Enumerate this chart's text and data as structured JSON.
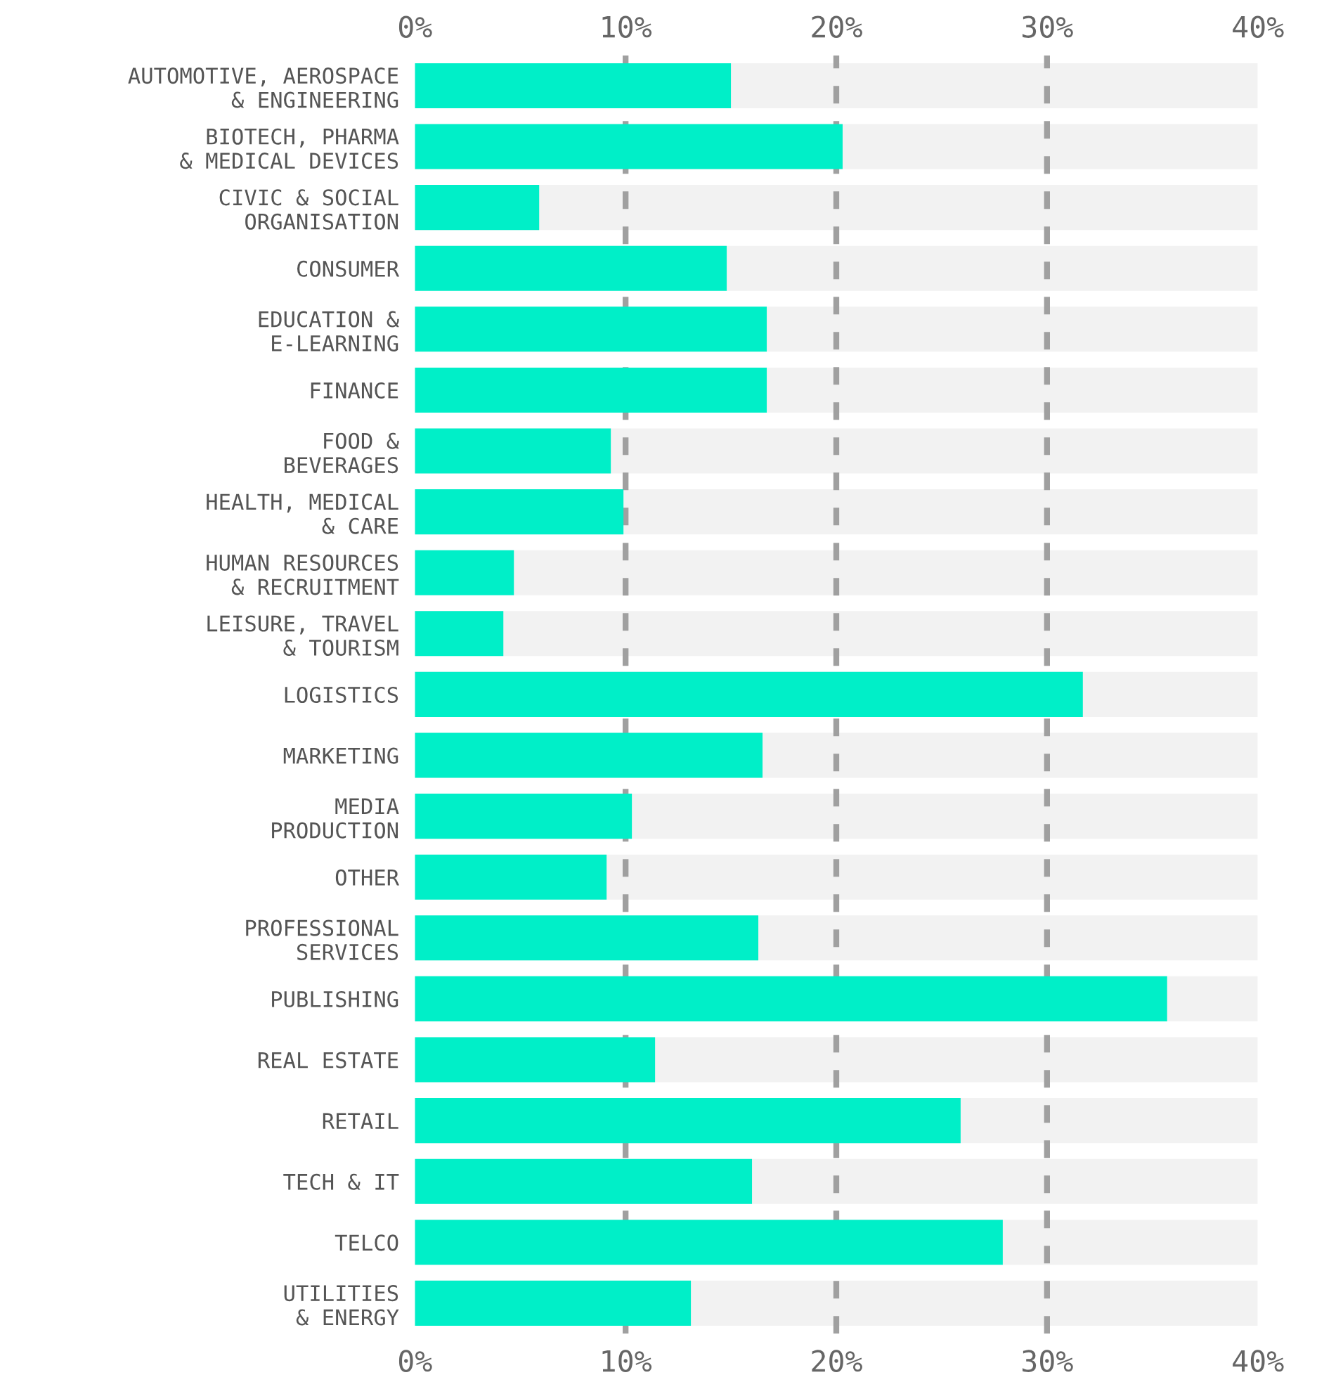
{
  "chart_data": {
    "type": "bar",
    "orientation": "horizontal",
    "categories": [
      "AUTOMOTIVE, AEROSPACE\n& ENGINEERING",
      "BIOTECH, PHARMA\n& MEDICAL DEVICES",
      "CIVIC & SOCIAL\nORGANISATION",
      "CONSUMER",
      "EDUCATION &\nE-LEARNING",
      "FINANCE",
      "FOOD &\nBEVERAGES",
      "HEALTH, MEDICAL\n& CARE",
      "HUMAN RESOURCES\n& RECRUITMENT",
      "LEISURE, TRAVEL\n& TOURISM",
      "LOGISTICS",
      "MARKETING",
      "MEDIA\nPRODUCTION",
      "OTHER",
      "PROFESSIONAL\nSERVICES",
      "PUBLISHING",
      "REAL ESTATE",
      "RETAIL",
      "TECH & IT",
      "TELCO",
      "UTILITIES\n& ENERGY"
    ],
    "values": [
      15.0,
      20.3,
      5.9,
      14.8,
      16.7,
      16.7,
      9.3,
      9.9,
      4.7,
      4.2,
      31.7,
      16.5,
      10.3,
      9.1,
      16.3,
      35.7,
      11.4,
      25.9,
      16.0,
      27.9,
      13.1
    ],
    "color": "#00efc8",
    "xlim": [
      0,
      40
    ],
    "xticks": [
      {
        "value": 0,
        "label": "0%"
      },
      {
        "value": 10,
        "label": "10%"
      },
      {
        "value": 20,
        "label": "20%"
      },
      {
        "value": 30,
        "label": "30%"
      },
      {
        "value": 40,
        "label": "40%"
      }
    ],
    "x2lim": [
      0,
      40
    ],
    "x2ticks": [
      {
        "value": 0,
        "label": "0%"
      },
      {
        "value": 10,
        "label": "10%"
      },
      {
        "value": 20,
        "label": "20%"
      },
      {
        "value": 30,
        "label": "30%"
      },
      {
        "value": 40,
        "label": "40%"
      }
    ],
    "grid": "x",
    "line_style": "dashed"
  }
}
